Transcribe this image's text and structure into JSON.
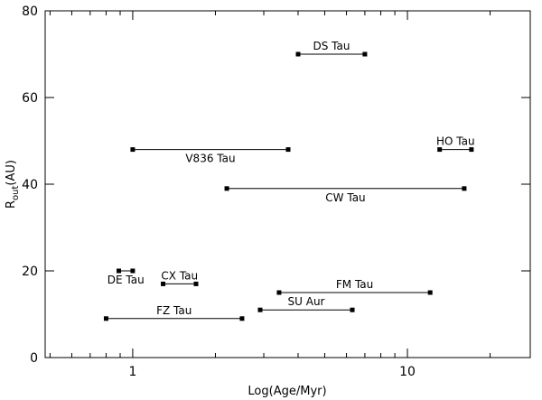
{
  "chart_data": {
    "type": "range",
    "xlabel": "Log(Age/Myr)",
    "ylabel": [
      "R",
      "out",
      "(AU)"
    ],
    "log_x": true,
    "xlim": [
      0.48,
      28
    ],
    "xticks": [
      1,
      10
    ],
    "ylim": [
      0,
      80
    ],
    "yticks": [
      0,
      20,
      40,
      60,
      80
    ],
    "color": "#000000",
    "series": [
      {
        "name": "DS Tau",
        "x": [
          4.0,
          7.0
        ],
        "y": 70
      },
      {
        "name": "V836 Tau",
        "x": [
          1.0,
          3.68
        ],
        "y": 48
      },
      {
        "name": "HO Tau",
        "x": [
          13.1,
          17.1
        ],
        "y": 48
      },
      {
        "name": "CW Tau",
        "x": [
          2.2,
          16.1
        ],
        "y": 39
      },
      {
        "name": "DE Tau",
        "x": [
          0.89,
          1.0
        ],
        "y": 20
      },
      {
        "name": "CX Tau",
        "x": [
          1.29,
          1.7
        ],
        "y": 17
      },
      {
        "name": "FM Tau",
        "x": [
          3.41,
          12.1
        ],
        "y": 15
      },
      {
        "name": "SU Aur",
        "x": [
          2.91,
          6.3
        ],
        "y": 11
      },
      {
        "name": "FZ Tau",
        "x": [
          0.8,
          2.5
        ],
        "y": 9
      }
    ]
  }
}
